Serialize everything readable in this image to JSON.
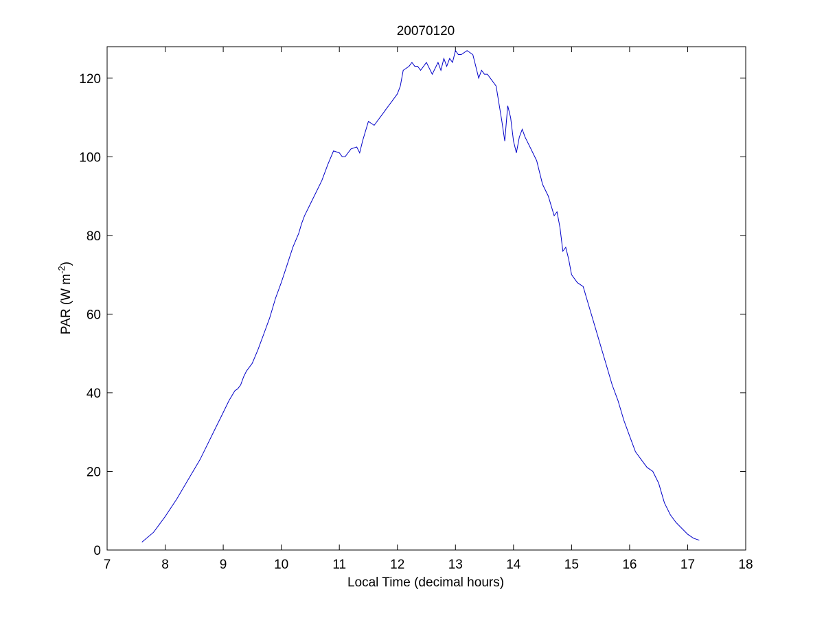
{
  "chart_data": {
    "type": "line",
    "title": "20070120",
    "xlabel": "Local Time (decimal hours)",
    "ylabel": {
      "prefix": "PAR (W m",
      "superscript": "-2",
      "suffix": ")"
    },
    "xlim": [
      7,
      18
    ],
    "ylim": [
      0,
      128
    ],
    "xticks": [
      "7",
      "8",
      "9",
      "10",
      "11",
      "12",
      "13",
      "14",
      "15",
      "16",
      "17",
      "18"
    ],
    "yticks": [
      "0",
      "20",
      "40",
      "60",
      "80",
      "100",
      "120"
    ],
    "grid": false,
    "line_color": "#0000c8",
    "series": [
      {
        "x": [
          7.6,
          7.8,
          8.0,
          8.2,
          8.4,
          8.6,
          8.8,
          9.0,
          9.1,
          9.2,
          9.25,
          9.3,
          9.35,
          9.4,
          9.5,
          9.6,
          9.7,
          9.8,
          9.9,
          10.0,
          10.1,
          10.2,
          10.3,
          10.35,
          10.4,
          10.5,
          10.6,
          10.7,
          10.8,
          10.9,
          11.0,
          11.05,
          11.1,
          11.2,
          11.3,
          11.35,
          11.4,
          11.5,
          11.6,
          11.7,
          11.75,
          11.8,
          11.85,
          11.9,
          11.95,
          12.0,
          12.05,
          12.1,
          12.2,
          12.25,
          12.3,
          12.35,
          12.4,
          12.5,
          12.6,
          12.7,
          12.75,
          12.8,
          12.85,
          12.9,
          12.95,
          13.0,
          13.05,
          13.1,
          13.2,
          13.3,
          13.35,
          13.4,
          13.45,
          13.5,
          13.55,
          13.6,
          13.7,
          13.8,
          13.85,
          13.9,
          13.95,
          14.0,
          14.05,
          14.1,
          14.15,
          14.2,
          14.3,
          14.4,
          14.5,
          14.6,
          14.7,
          14.75,
          14.8,
          14.85,
          14.9,
          14.95,
          15.0,
          15.1,
          15.2,
          15.3,
          15.4,
          15.5,
          15.6,
          15.7,
          15.8,
          15.9,
          16.0,
          16.1,
          16.2,
          16.3,
          16.4,
          16.5,
          16.6,
          16.7,
          16.8,
          16.9,
          17.0,
          17.1,
          17.2
        ],
        "values": [
          2,
          4.5,
          8.5,
          13,
          18,
          23,
          29,
          35,
          38,
          40.5,
          41,
          42,
          44,
          45.5,
          47.5,
          51,
          55,
          59,
          64,
          68,
          72.5,
          77,
          80.5,
          83,
          85,
          88,
          91,
          94,
          98,
          101.5,
          101,
          100,
          100,
          102,
          102.5,
          101,
          104,
          109,
          108,
          110,
          111,
          112,
          113,
          114,
          115,
          116,
          118,
          122,
          123,
          124,
          123,
          123,
          122,
          124,
          121,
          124,
          122,
          125,
          123,
          125,
          124,
          127,
          126,
          126,
          127,
          126,
          123,
          120,
          122,
          121,
          121,
          120,
          118,
          109,
          104,
          113,
          110,
          104,
          101,
          105,
          107,
          105,
          102,
          99,
          93,
          90,
          85,
          86,
          82,
          76,
          77,
          74,
          70,
          68,
          67,
          62,
          57,
          52,
          47,
          42,
          38,
          33,
          29,
          25,
          23,
          21,
          20,
          17,
          12,
          9,
          7,
          5.5,
          4,
          3,
          2.5
        ]
      }
    ]
  }
}
